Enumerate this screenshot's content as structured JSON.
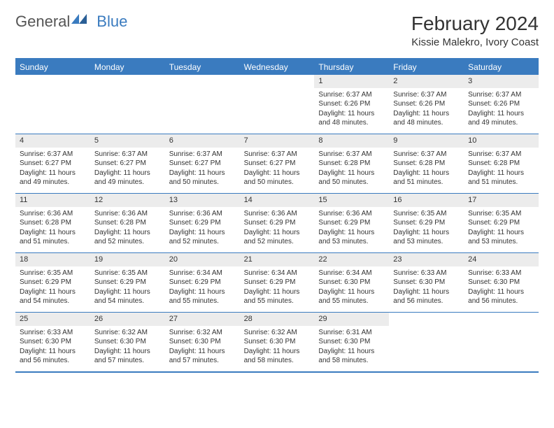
{
  "brand": {
    "word1": "General",
    "word2": "Blue"
  },
  "header": {
    "month": "February 2024",
    "location": "Kissie Malekro, Ivory Coast"
  },
  "colors": {
    "primary": "#3a7bbf",
    "header_bg": "#ececec",
    "text": "#333333",
    "background": "#ffffff"
  },
  "weekdays": [
    "Sunday",
    "Monday",
    "Tuesday",
    "Wednesday",
    "Thursday",
    "Friday",
    "Saturday"
  ],
  "weeks": [
    [
      null,
      null,
      null,
      null,
      {
        "n": "1",
        "sunrise": "Sunrise: 6:37 AM",
        "sunset": "Sunset: 6:26 PM",
        "daylight": "Daylight: 11 hours and 48 minutes."
      },
      {
        "n": "2",
        "sunrise": "Sunrise: 6:37 AM",
        "sunset": "Sunset: 6:26 PM",
        "daylight": "Daylight: 11 hours and 48 minutes."
      },
      {
        "n": "3",
        "sunrise": "Sunrise: 6:37 AM",
        "sunset": "Sunset: 6:26 PM",
        "daylight": "Daylight: 11 hours and 49 minutes."
      }
    ],
    [
      {
        "n": "4",
        "sunrise": "Sunrise: 6:37 AM",
        "sunset": "Sunset: 6:27 PM",
        "daylight": "Daylight: 11 hours and 49 minutes."
      },
      {
        "n": "5",
        "sunrise": "Sunrise: 6:37 AM",
        "sunset": "Sunset: 6:27 PM",
        "daylight": "Daylight: 11 hours and 49 minutes."
      },
      {
        "n": "6",
        "sunrise": "Sunrise: 6:37 AM",
        "sunset": "Sunset: 6:27 PM",
        "daylight": "Daylight: 11 hours and 50 minutes."
      },
      {
        "n": "7",
        "sunrise": "Sunrise: 6:37 AM",
        "sunset": "Sunset: 6:27 PM",
        "daylight": "Daylight: 11 hours and 50 minutes."
      },
      {
        "n": "8",
        "sunrise": "Sunrise: 6:37 AM",
        "sunset": "Sunset: 6:28 PM",
        "daylight": "Daylight: 11 hours and 50 minutes."
      },
      {
        "n": "9",
        "sunrise": "Sunrise: 6:37 AM",
        "sunset": "Sunset: 6:28 PM",
        "daylight": "Daylight: 11 hours and 51 minutes."
      },
      {
        "n": "10",
        "sunrise": "Sunrise: 6:37 AM",
        "sunset": "Sunset: 6:28 PM",
        "daylight": "Daylight: 11 hours and 51 minutes."
      }
    ],
    [
      {
        "n": "11",
        "sunrise": "Sunrise: 6:36 AM",
        "sunset": "Sunset: 6:28 PM",
        "daylight": "Daylight: 11 hours and 51 minutes."
      },
      {
        "n": "12",
        "sunrise": "Sunrise: 6:36 AM",
        "sunset": "Sunset: 6:28 PM",
        "daylight": "Daylight: 11 hours and 52 minutes."
      },
      {
        "n": "13",
        "sunrise": "Sunrise: 6:36 AM",
        "sunset": "Sunset: 6:29 PM",
        "daylight": "Daylight: 11 hours and 52 minutes."
      },
      {
        "n": "14",
        "sunrise": "Sunrise: 6:36 AM",
        "sunset": "Sunset: 6:29 PM",
        "daylight": "Daylight: 11 hours and 52 minutes."
      },
      {
        "n": "15",
        "sunrise": "Sunrise: 6:36 AM",
        "sunset": "Sunset: 6:29 PM",
        "daylight": "Daylight: 11 hours and 53 minutes."
      },
      {
        "n": "16",
        "sunrise": "Sunrise: 6:35 AM",
        "sunset": "Sunset: 6:29 PM",
        "daylight": "Daylight: 11 hours and 53 minutes."
      },
      {
        "n": "17",
        "sunrise": "Sunrise: 6:35 AM",
        "sunset": "Sunset: 6:29 PM",
        "daylight": "Daylight: 11 hours and 53 minutes."
      }
    ],
    [
      {
        "n": "18",
        "sunrise": "Sunrise: 6:35 AM",
        "sunset": "Sunset: 6:29 PM",
        "daylight": "Daylight: 11 hours and 54 minutes."
      },
      {
        "n": "19",
        "sunrise": "Sunrise: 6:35 AM",
        "sunset": "Sunset: 6:29 PM",
        "daylight": "Daylight: 11 hours and 54 minutes."
      },
      {
        "n": "20",
        "sunrise": "Sunrise: 6:34 AM",
        "sunset": "Sunset: 6:29 PM",
        "daylight": "Daylight: 11 hours and 55 minutes."
      },
      {
        "n": "21",
        "sunrise": "Sunrise: 6:34 AM",
        "sunset": "Sunset: 6:29 PM",
        "daylight": "Daylight: 11 hours and 55 minutes."
      },
      {
        "n": "22",
        "sunrise": "Sunrise: 6:34 AM",
        "sunset": "Sunset: 6:30 PM",
        "daylight": "Daylight: 11 hours and 55 minutes."
      },
      {
        "n": "23",
        "sunrise": "Sunrise: 6:33 AM",
        "sunset": "Sunset: 6:30 PM",
        "daylight": "Daylight: 11 hours and 56 minutes."
      },
      {
        "n": "24",
        "sunrise": "Sunrise: 6:33 AM",
        "sunset": "Sunset: 6:30 PM",
        "daylight": "Daylight: 11 hours and 56 minutes."
      }
    ],
    [
      {
        "n": "25",
        "sunrise": "Sunrise: 6:33 AM",
        "sunset": "Sunset: 6:30 PM",
        "daylight": "Daylight: 11 hours and 56 minutes."
      },
      {
        "n": "26",
        "sunrise": "Sunrise: 6:32 AM",
        "sunset": "Sunset: 6:30 PM",
        "daylight": "Daylight: 11 hours and 57 minutes."
      },
      {
        "n": "27",
        "sunrise": "Sunrise: 6:32 AM",
        "sunset": "Sunset: 6:30 PM",
        "daylight": "Daylight: 11 hours and 57 minutes."
      },
      {
        "n": "28",
        "sunrise": "Sunrise: 6:32 AM",
        "sunset": "Sunset: 6:30 PM",
        "daylight": "Daylight: 11 hours and 58 minutes."
      },
      {
        "n": "29",
        "sunrise": "Sunrise: 6:31 AM",
        "sunset": "Sunset: 6:30 PM",
        "daylight": "Daylight: 11 hours and 58 minutes."
      },
      null,
      null
    ]
  ]
}
